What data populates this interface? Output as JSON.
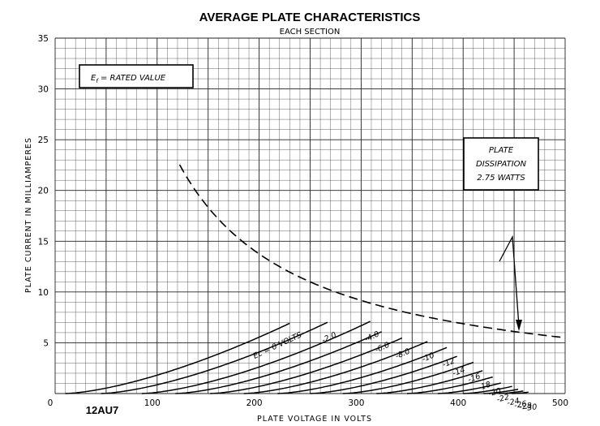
{
  "chart_data": {
    "type": "line",
    "title": "AVERAGE PLATE CHARACTERISTICS",
    "subtitle": "EACH SECTION",
    "xlabel": "PLATE VOLTAGE IN VOLTS",
    "ylabel": "PLATE CURRENT IN MILLIAMPERES",
    "xlim": [
      0,
      500
    ],
    "ylim": [
      0,
      35
    ],
    "x_ticks": [
      "0",
      "100",
      "200",
      "300",
      "400",
      "500"
    ],
    "y_ticks": [
      "5",
      "10",
      "15",
      "20",
      "25",
      "30",
      "35"
    ],
    "grid": true,
    "tube_label": "12AU7",
    "condition_label": "RATED VALUE",
    "annotations": {
      "ef_prefix": "E",
      "ef_sub": "f",
      "ef_text": " = RATED VALUE",
      "dissipation_lines": [
        "PLATE",
        "DISSIPATION",
        "2.75 WATTS"
      ]
    },
    "series": [
      {
        "name": "Ec = 0 VOLTS",
        "label": "Ec = 0 VOLTS",
        "v0": 10,
        "x_end": 230
      },
      {
        "name": "-2.0",
        "label": "-2.0",
        "v0": 45,
        "x_end": 268
      },
      {
        "name": "-4.0",
        "label": "-4.0",
        "v0": 85,
        "x_end": 310
      },
      {
        "name": "-6.0",
        "label": "-6.0",
        "v0": 118,
        "x_end": 320
      },
      {
        "name": "-8.0",
        "label": "-8.0",
        "v0": 152,
        "x_end": 340
      },
      {
        "name": "-10",
        "label": "-10",
        "v0": 185,
        "x_end": 365
      },
      {
        "name": "-12",
        "label": "-12",
        "v0": 218,
        "x_end": 385
      },
      {
        "name": "-14",
        "label": "-14",
        "v0": 250,
        "x_end": 395
      },
      {
        "name": "-16",
        "label": "-16",
        "v0": 282,
        "x_end": 410
      },
      {
        "name": "-18",
        "label": "-18",
        "v0": 315,
        "x_end": 420
      },
      {
        "name": "-20",
        "label": "-20",
        "v0": 345,
        "x_end": 430
      },
      {
        "name": "-22",
        "label": "-22",
        "v0": 375,
        "x_end": 438
      },
      {
        "name": "-24",
        "label": "-24",
        "v0": 400,
        "x_end": 448
      },
      {
        "name": "-26",
        "label": "-26",
        "v0": 420,
        "x_end": 455
      },
      {
        "name": "-28",
        "label": "-28",
        "v0": 435,
        "x_end": 460
      },
      {
        "name": "-30",
        "label": "-30",
        "v0": 448,
        "x_end": 465
      }
    ],
    "curve_model": {
      "k": 0.00212,
      "exponent": 1.5
    },
    "dissipation_watts": 2.75,
    "dissipation_range_v": [
      122,
      500
    ]
  }
}
